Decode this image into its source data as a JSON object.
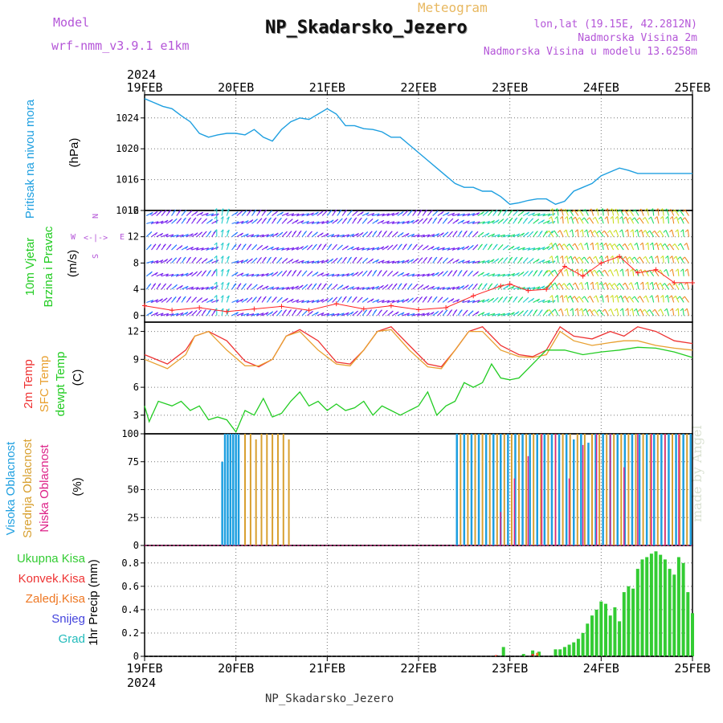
{
  "header": {
    "model_label": "Model",
    "model_name": "wrf-nmm_v3.9.1  e1km",
    "meteogram_label": "Meteogram",
    "station": "NP_Skadarsko_Jezero",
    "lonlat": "lon,lat (19.15E, 42.2812N)",
    "altitude": "Nadmorska Visina 2m",
    "model_altitude": "Nadmorska Visina u modelu 13.6258m",
    "footer_station": "NP_Skadarsko_Jezero",
    "credit": "made by Angel",
    "year_top": "2024",
    "year_bottom": "2024"
  },
  "colors": {
    "pressure": "#1e9fe0",
    "t2m": "#ee3333",
    "sfc": "#e8a030",
    "dew": "#22cc22",
    "cloud_high": "#1e9fe0",
    "cloud_mid": "#d8a030",
    "cloud_low": "#dd2288",
    "rain_total": "#33cc33",
    "rain_conv": "#ee3333",
    "rain_frozen": "#ee7722",
    "snow": "#4444dd",
    "hail": "#22bbbb",
    "gust": "#ff2222",
    "wind_slow": "#7722ee",
    "wind_mid": "#2277ff",
    "wind_teal": "#22cccc",
    "wind_green": "#22dd66",
    "wind_yellow": "#ccdd22",
    "wind_orange": "#ee8822"
  },
  "chart_data": [
    {
      "type": "line",
      "panel": "pressure",
      "ylabel": "Pritisak na nivou mora",
      "unit": "(hPa)",
      "ylim": [
        1012,
        1027
      ],
      "yticks": [
        1012,
        1016,
        1020,
        1024
      ],
      "x_days": [
        "19FEB",
        "20FEB",
        "21FEB",
        "22FEB",
        "23FEB",
        "24FEB",
        "25FEB"
      ],
      "grid": true,
      "series": [
        {
          "name": "Pritisak na nivou mora",
          "x": [
            0,
            0.1,
            0.2,
            0.3,
            0.4,
            0.5,
            0.6,
            0.7,
            0.8,
            0.9,
            1.0,
            1.1,
            1.2,
            1.3,
            1.4,
            1.5,
            1.6,
            1.7,
            1.8,
            1.9,
            2.0,
            2.1,
            2.2,
            2.3,
            2.4,
            2.5,
            2.6,
            2.7,
            2.8,
            2.9,
            3.0,
            3.1,
            3.2,
            3.3,
            3.4,
            3.5,
            3.6,
            3.7,
            3.8,
            3.9,
            4.0,
            4.1,
            4.2,
            4.3,
            4.4,
            4.5,
            4.6,
            4.7,
            4.8,
            4.9,
            5.0,
            5.1,
            5.2,
            5.3,
            5.4,
            5.5,
            5.6,
            5.7,
            5.8,
            5.9,
            6.0
          ],
          "y": [
            1026.5,
            1026.0,
            1025.5,
            1025.2,
            1024.3,
            1023.5,
            1022.0,
            1021.5,
            1021.8,
            1022.0,
            1022.0,
            1021.8,
            1022.5,
            1021.5,
            1021.0,
            1022.5,
            1023.5,
            1024.0,
            1023.8,
            1024.5,
            1025.2,
            1024.5,
            1023.0,
            1023.0,
            1022.6,
            1022.5,
            1022.2,
            1021.5,
            1021.5,
            1020.5,
            1019.5,
            1018.5,
            1017.5,
            1016.5,
            1015.5,
            1015.0,
            1015.0,
            1014.5,
            1014.5,
            1013.8,
            1012.8,
            1013.0,
            1013.3,
            1013.5,
            1013.5,
            1012.8,
            1013.2,
            1014.5,
            1015.0,
            1015.5,
            1016.5,
            1017.0,
            1017.5,
            1017.2,
            1016.8,
            1016.8,
            1016.8,
            1016.8,
            1016.8,
            1016.8,
            1016.8
          ]
        }
      ]
    },
    {
      "type": "line",
      "panel": "wind",
      "ylabel": "10m Vjetar",
      "ylabel2": "Brzina i Pravac",
      "unit": "(m/s)",
      "compass": {
        "n": "N",
        "s": "S",
        "e": "E",
        "w": "W",
        "arrows": "<-|->"
      },
      "ylim": [
        -1,
        16
      ],
      "yticks": [
        0,
        4,
        8,
        12,
        16
      ],
      "grid": true,
      "barb_rows": [
        0,
        2,
        4,
        6,
        8,
        10,
        12,
        14,
        15.2
      ],
      "series": [
        {
          "name": "gust",
          "x": [
            0,
            0.3,
            0.6,
            0.9,
            1.2,
            1.5,
            1.8,
            2.1,
            2.4,
            2.7,
            3.0,
            3.3,
            3.6,
            3.9,
            4.0,
            4.2,
            4.4,
            4.6,
            4.8,
            5.0,
            5.2,
            5.4,
            5.6,
            5.8,
            6.0
          ],
          "y": [
            1.5,
            0.8,
            1.2,
            0.6,
            1.0,
            1.4,
            0.8,
            1.8,
            1.0,
            1.5,
            0.9,
            1.2,
            3.0,
            4.5,
            4.8,
            3.8,
            4.0,
            7.5,
            6.0,
            8.0,
            9.0,
            6.5,
            7.0,
            5.0,
            5.0
          ]
        }
      ]
    },
    {
      "type": "line",
      "panel": "temperature",
      "ylabel": "2m Temp",
      "ylabel2": "SFC Temp",
      "ylabel3": "dewpt Temp",
      "unit": "(C)",
      "ylim": [
        1,
        13
      ],
      "yticks": [
        3,
        6,
        9,
        12
      ],
      "grid": true,
      "series": [
        {
          "name": "2m Temp",
          "x": [
            0,
            0.25,
            0.45,
            0.55,
            0.7,
            0.9,
            1.1,
            1.25,
            1.4,
            1.55,
            1.7,
            1.9,
            2.1,
            2.25,
            2.4,
            2.55,
            2.7,
            2.9,
            3.1,
            3.25,
            3.4,
            3.55,
            3.7,
            3.9,
            4.1,
            4.25,
            4.4,
            4.55,
            4.7,
            4.9,
            5.1,
            5.25,
            5.4,
            5.6,
            5.8,
            6.0
          ],
          "y": [
            9.5,
            8.5,
            10.0,
            11.5,
            12.0,
            11.0,
            8.8,
            8.2,
            9.0,
            11.5,
            12.2,
            11.0,
            8.7,
            8.5,
            10.0,
            12.0,
            12.5,
            10.5,
            8.5,
            8.2,
            10.0,
            12.0,
            12.5,
            10.5,
            9.5,
            9.3,
            10.0,
            12.5,
            11.5,
            11.2,
            12.0,
            11.5,
            12.5,
            12.0,
            11.0,
            10.7
          ]
        },
        {
          "name": "SFC Temp",
          "x": [
            0,
            0.25,
            0.45,
            0.55,
            0.7,
            0.9,
            1.1,
            1.25,
            1.4,
            1.55,
            1.7,
            1.9,
            2.1,
            2.25,
            2.4,
            2.55,
            2.7,
            2.9,
            3.1,
            3.25,
            3.4,
            3.55,
            3.7,
            3.9,
            4.1,
            4.25,
            4.4,
            4.55,
            4.7,
            4.9,
            5.1,
            5.25,
            5.4,
            5.6,
            5.8,
            6.0
          ],
          "y": [
            9.0,
            8.0,
            9.5,
            11.5,
            12.0,
            10.0,
            8.3,
            8.3,
            9.0,
            11.5,
            12.0,
            10.0,
            8.5,
            8.3,
            10.0,
            12.0,
            12.2,
            10.0,
            8.2,
            8.0,
            10.0,
            12.0,
            12.0,
            10.0,
            9.3,
            9.2,
            9.5,
            12.0,
            11.0,
            10.5,
            10.8,
            11.0,
            11.0,
            10.5,
            10.2,
            10.0
          ]
        },
        {
          "name": "dewpt Temp",
          "x": [
            0,
            0.05,
            0.15,
            0.3,
            0.4,
            0.5,
            0.6,
            0.7,
            0.8,
            0.9,
            1.0,
            1.1,
            1.2,
            1.3,
            1.4,
            1.5,
            1.6,
            1.7,
            1.8,
            1.9,
            2.0,
            2.1,
            2.2,
            2.3,
            2.4,
            2.5,
            2.6,
            2.7,
            2.8,
            2.9,
            3.0,
            3.1,
            3.2,
            3.3,
            3.4,
            3.5,
            3.6,
            3.7,
            3.8,
            3.9,
            4.0,
            4.1,
            4.2,
            4.3,
            4.4,
            4.6,
            4.8,
            5.0,
            5.2,
            5.4,
            5.6,
            5.8,
            6.0
          ],
          "y": [
            4.0,
            2.3,
            4.5,
            4.0,
            4.5,
            3.5,
            4.0,
            2.5,
            2.8,
            2.5,
            1.2,
            3.5,
            3.0,
            4.8,
            2.8,
            3.2,
            4.5,
            5.5,
            4.0,
            4.5,
            3.5,
            4.2,
            3.5,
            3.8,
            4.5,
            3.0,
            4.0,
            3.5,
            3.0,
            3.5,
            4.0,
            5.5,
            3.0,
            4.0,
            4.5,
            6.5,
            6.0,
            6.5,
            8.5,
            7.0,
            6.8,
            7.0,
            8.0,
            9.0,
            10.0,
            10.0,
            9.5,
            9.8,
            10.0,
            10.3,
            10.2,
            9.8,
            9.2
          ]
        }
      ]
    },
    {
      "type": "bar",
      "panel": "clouds",
      "ylabel": "Visoka Oblacnost",
      "ylabel2": "Srednja Oblacnost",
      "ylabel3": "Niska Oblacnost",
      "unit": "(%)",
      "ylim": [
        0,
        100
      ],
      "yticks": [
        0,
        25,
        50,
        75,
        100
      ],
      "grid": true,
      "series": [
        {
          "name": "Visoka Oblacnost",
          "x": [
            0.85,
            0.88,
            0.91,
            0.94,
            0.97,
            1.0,
            1.03,
            3.42,
            3.5,
            3.58,
            3.66,
            3.74,
            3.82,
            3.9,
            3.98,
            4.06,
            4.14,
            4.22,
            4.3,
            4.38,
            4.46,
            4.54,
            4.62,
            4.7,
            4.78,
            4.86,
            4.94,
            5.02,
            5.1,
            5.18,
            5.26,
            5.34,
            5.42,
            5.5,
            5.58,
            5.66,
            5.74,
            5.82,
            5.9,
            5.98
          ],
          "values": [
            75,
            100,
            100,
            100,
            100,
            100,
            100,
            100,
            100,
            100,
            100,
            100,
            100,
            100,
            100,
            100,
            100,
            100,
            100,
            100,
            100,
            100,
            100,
            95,
            100,
            92,
            100,
            100,
            100,
            100,
            100,
            100,
            100,
            100,
            100,
            100,
            100,
            100,
            100,
            100
          ]
        },
        {
          "name": "Srednja Oblacnost",
          "x": [
            1.1,
            1.16,
            1.22,
            1.28,
            1.34,
            1.4,
            1.46,
            1.52,
            1.58,
            3.46,
            3.54,
            3.62,
            3.7,
            3.78,
            3.86,
            3.94,
            4.02,
            4.1,
            4.18,
            4.26,
            4.34,
            4.42,
            4.5,
            4.58,
            4.66,
            4.74,
            4.82,
            4.9,
            4.98,
            5.06,
            5.14,
            5.22,
            5.3,
            5.38,
            5.46,
            5.54,
            5.62,
            5.7,
            5.78,
            5.86,
            5.94
          ],
          "values": [
            100,
            100,
            95,
            100,
            100,
            100,
            100,
            100,
            95,
            100,
            100,
            100,
            100,
            100,
            100,
            100,
            100,
            100,
            100,
            100,
            100,
            100,
            100,
            100,
            100,
            100,
            100,
            100,
            100,
            100,
            100,
            100,
            100,
            100,
            100,
            100,
            100,
            100,
            100,
            100,
            100
          ]
        },
        {
          "name": "Niska Oblacnost",
          "x": [
            3.9,
            4.05,
            4.2,
            4.35,
            4.5,
            4.65,
            4.8,
            4.95,
            5.1,
            5.25,
            5.4,
            5.55,
            5.7,
            5.85
          ],
          "values": [
            30,
            60,
            80,
            100,
            100,
            60,
            90,
            100,
            100,
            70,
            100,
            100,
            100,
            100
          ]
        }
      ]
    },
    {
      "type": "bar",
      "panel": "precip",
      "ylabel": "1hr Precip (mm)",
      "legend": [
        "Ukupna Kisa",
        "Konvek.Kisa",
        "Zaledj.Kisa",
        "Snijeg",
        "Grad"
      ],
      "ylim": [
        0,
        0.95
      ],
      "yticks": [
        0,
        0.2,
        0.4,
        0.6,
        0.8
      ],
      "grid": true,
      "series": [
        {
          "name": "Ukupna Kisa",
          "x": [
            3.85,
            3.93,
            4.15,
            4.25,
            4.32,
            4.5,
            4.55,
            4.6,
            4.65,
            4.7,
            4.75,
            4.8,
            4.85,
            4.9,
            4.95,
            5.0,
            5.05,
            5.1,
            5.15,
            5.2,
            5.25,
            5.3,
            5.35,
            5.4,
            5.45,
            5.5,
            5.55,
            5.6,
            5.65,
            5.7,
            5.75,
            5.8,
            5.85,
            5.9,
            5.95,
            6.0
          ],
          "values": [
            0.01,
            0.08,
            0.02,
            0.05,
            0.04,
            0.06,
            0.06,
            0.08,
            0.1,
            0.12,
            0.15,
            0.2,
            0.28,
            0.35,
            0.4,
            0.47,
            0.45,
            0.35,
            0.42,
            0.3,
            0.55,
            0.6,
            0.58,
            0.75,
            0.83,
            0.85,
            0.88,
            0.9,
            0.87,
            0.83,
            0.75,
            0.7,
            0.85,
            0.8,
            0.55,
            0.37
          ]
        },
        {
          "name": "Konvek.Kisa",
          "x": [
            3.85,
            4.25
          ],
          "values": [
            0.01,
            0.02
          ]
        },
        {
          "name": "Zaledj.Kisa",
          "x": [
            4.3
          ],
          "values": [
            0.03
          ]
        }
      ]
    }
  ]
}
